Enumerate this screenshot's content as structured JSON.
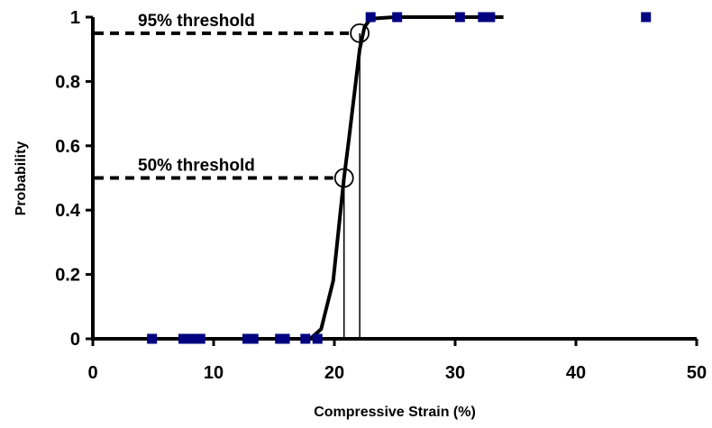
{
  "chart_data": {
    "type": "scatter",
    "xlabel": "Compressive Strain (%)",
    "ylabel": "Probability",
    "xlim": [
      0,
      50
    ],
    "ylim": [
      0,
      1
    ],
    "x_ticks": [
      "0",
      "10",
      "20",
      "30",
      "40",
      "50"
    ],
    "y_ticks": [
      "0",
      "0.2",
      "0.4",
      "0.6",
      "0.8",
      "1"
    ],
    "grid": false,
    "legend": "none",
    "series": [
      {
        "kind": "scatter",
        "marker": "square",
        "color": "#000080",
        "points": [
          {
            "x": 4.9,
            "y": 0
          },
          {
            "x": 7.5,
            "y": 0
          },
          {
            "x": 8.3,
            "y": 0
          },
          {
            "x": 8.9,
            "y": 0
          },
          {
            "x": 12.8,
            "y": 0
          },
          {
            "x": 13.3,
            "y": 0
          },
          {
            "x": 15.5,
            "y": 0
          },
          {
            "x": 15.9,
            "y": 0
          },
          {
            "x": 17.6,
            "y": 0
          },
          {
            "x": 18.6,
            "y": 0
          },
          {
            "x": 23.0,
            "y": 1
          },
          {
            "x": 25.2,
            "y": 1
          },
          {
            "x": 30.4,
            "y": 1
          },
          {
            "x": 32.3,
            "y": 1
          },
          {
            "x": 32.9,
            "y": 1
          },
          {
            "x": 45.8,
            "y": 1
          }
        ]
      },
      {
        "kind": "line",
        "color": "#000000",
        "points": [
          {
            "x": 0,
            "y": 0
          },
          {
            "x": 18.0,
            "y": 0
          },
          {
            "x": 18.9,
            "y": 0.03
          },
          {
            "x": 19.9,
            "y": 0.18
          },
          {
            "x": 20.8,
            "y": 0.5
          },
          {
            "x": 21.2,
            "y": 0.62
          },
          {
            "x": 22.1,
            "y": 0.9
          },
          {
            "x": 22.5,
            "y": 0.97
          },
          {
            "x": 23.0,
            "y": 0.995
          },
          {
            "x": 25.0,
            "y": 1
          },
          {
            "x": 34.0,
            "y": 1
          }
        ]
      }
    ],
    "annotations": [
      {
        "label": "95% threshold",
        "x": 22.1,
        "y": 0.95
      },
      {
        "label": "50% threshold",
        "x": 20.8,
        "y": 0.5
      }
    ]
  }
}
